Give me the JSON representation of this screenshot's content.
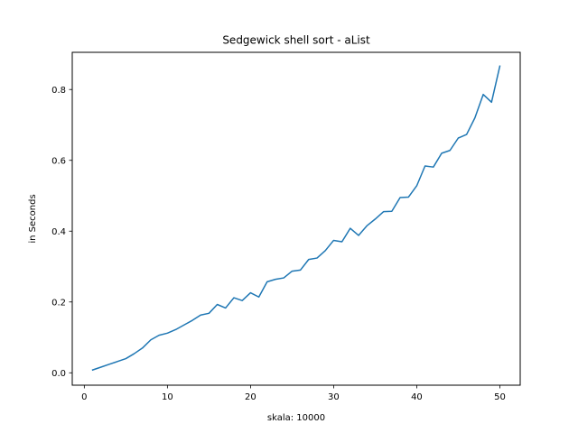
{
  "chart_data": {
    "type": "line",
    "title": "Sedgewick shell sort - aList",
    "xlabel": "skala: 10000",
    "ylabel": "in Seconds",
    "xlim": [
      -1.45,
      52.45
    ],
    "ylim": [
      -0.035,
      0.905
    ],
    "xticks": [
      0,
      10,
      20,
      30,
      40,
      50
    ],
    "xtick_labels": [
      "0",
      "10",
      "20",
      "30",
      "40",
      "50"
    ],
    "yticks": [
      0.0,
      0.2,
      0.4,
      0.6,
      0.8
    ],
    "ytick_labels": [
      "0.0",
      "0.2",
      "0.4",
      "0.6",
      "0.8"
    ],
    "grid": false,
    "series": [
      {
        "name": "aList",
        "color": "#1f77b4",
        "x": [
          1,
          2,
          3,
          4,
          5,
          6,
          7,
          8,
          9,
          10,
          11,
          12,
          13,
          14,
          15,
          16,
          17,
          18,
          19,
          20,
          21,
          22,
          23,
          24,
          25,
          26,
          27,
          28,
          29,
          30,
          31,
          32,
          33,
          34,
          35,
          36,
          37,
          38,
          39,
          40,
          41,
          42,
          43,
          44,
          45,
          46,
          47,
          48,
          49,
          50
        ],
        "values": [
          0.008,
          0.016,
          0.024,
          0.032,
          0.04,
          0.054,
          0.07,
          0.093,
          0.106,
          0.112,
          0.122,
          0.135,
          0.148,
          0.163,
          0.168,
          0.193,
          0.183,
          0.212,
          0.204,
          0.226,
          0.214,
          0.257,
          0.264,
          0.268,
          0.287,
          0.29,
          0.32,
          0.324,
          0.345,
          0.374,
          0.37,
          0.408,
          0.388,
          0.415,
          0.434,
          0.455,
          0.456,
          0.495,
          0.496,
          0.528,
          0.584,
          0.581,
          0.62,
          0.628,
          0.663,
          0.673,
          0.72,
          0.786,
          0.764,
          0.866
        ]
      }
    ]
  }
}
